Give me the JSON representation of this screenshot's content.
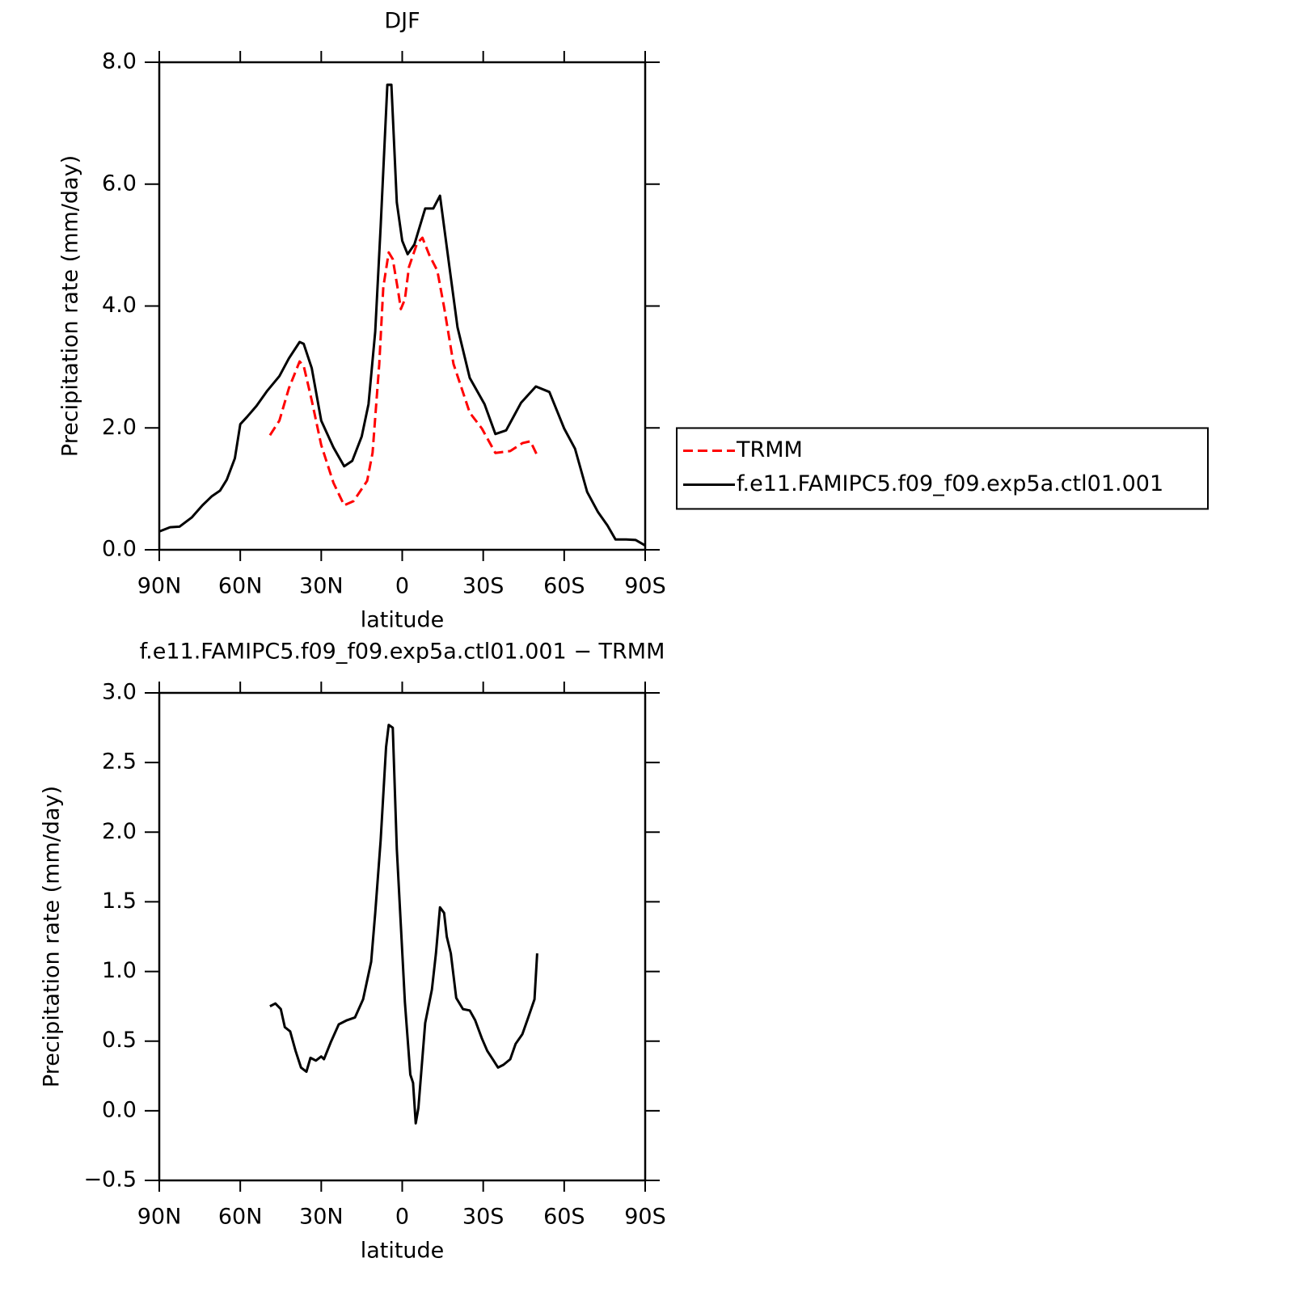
{
  "chart_data": [
    {
      "type": "line",
      "title": "DJF",
      "xlabel": "latitude",
      "ylabel": "Precipitation rate (mm/day)",
      "xlim": [
        90,
        -90
      ],
      "xticks": [
        {
          "value": 90,
          "label": "90N"
        },
        {
          "value": 60,
          "label": "60N"
        },
        {
          "value": 30,
          "label": "30N"
        },
        0,
        {
          "value": -30,
          "label": "30S"
        },
        {
          "value": -60,
          "label": "60S"
        },
        {
          "value": -90,
          "label": "90S"
        }
      ],
      "ylim": [
        0,
        8
      ],
      "yticks": [
        {
          "value": 0,
          "label": "0.0"
        },
        {
          "value": 2,
          "label": "2.0"
        },
        {
          "value": 4,
          "label": "4.0"
        },
        {
          "value": 6,
          "label": "6.0"
        },
        {
          "value": 8,
          "label": "8.0"
        }
      ],
      "legend": "right",
      "series": [
        {
          "name": "TRMM",
          "color": "#ff0000",
          "line_style": "dashed",
          "x": [
            49,
            45.5,
            42,
            38,
            36.5,
            33.5,
            30,
            25.5,
            21.5,
            18,
            13,
            11,
            8.5,
            7,
            5,
            3.5,
            1.5,
            0.5,
            -1,
            -2.5,
            -5.5,
            -7.5,
            -10,
            -13,
            -15.5,
            -19,
            -22,
            -25,
            -29.5,
            -34.5,
            -40,
            -44.5,
            -47.5,
            -50
          ],
          "values": [
            1.88,
            2.12,
            2.65,
            3.09,
            3.02,
            2.45,
            1.72,
            1.1,
            0.73,
            0.8,
            1.13,
            1.59,
            3.05,
            4.31,
            4.88,
            4.77,
            4.24,
            3.95,
            4.11,
            4.64,
            5.03,
            5.12,
            4.84,
            4.58,
            3.98,
            3.05,
            2.65,
            2.25,
            1.99,
            1.59,
            1.62,
            1.75,
            1.78,
            1.55
          ]
        },
        {
          "name": "f.e11.FAMIPC5.f09_f09.exp5a.ctl01.001",
          "color": "#000000",
          "line_style": "solid",
          "x": [
            90,
            86,
            82.5,
            78,
            74,
            70.5,
            67.5,
            65,
            62,
            60,
            57.5,
            54,
            50,
            45.5,
            42,
            38,
            36.5,
            33.5,
            30,
            25.5,
            21.5,
            18.5,
            15,
            12.5,
            10,
            8,
            5.5,
            4,
            2,
            0,
            -2,
            -4.5,
            -8.5,
            -11.5,
            -14,
            -17.5,
            -20.5,
            -25,
            -30.5,
            -34.5,
            -38.5,
            -44,
            -49.5,
            -54.5,
            -60,
            -64,
            -68.5,
            -72.5,
            -76,
            -79,
            -83,
            -86.5,
            -90
          ],
          "values": [
            0.3,
            0.37,
            0.38,
            0.53,
            0.73,
            0.88,
            0.97,
            1.15,
            1.5,
            2.06,
            2.18,
            2.36,
            2.61,
            2.85,
            3.14,
            3.41,
            3.38,
            2.98,
            2.12,
            1.68,
            1.37,
            1.46,
            1.86,
            2.39,
            3.58,
            5.3,
            7.63,
            7.63,
            5.7,
            5.07,
            4.85,
            5.01,
            5.6,
            5.6,
            5.81,
            4.64,
            3.65,
            2.82,
            2.39,
            1.9,
            1.96,
            2.41,
            2.68,
            2.59,
            1.99,
            1.66,
            0.95,
            0.62,
            0.4,
            0.17,
            0.17,
            0.16,
            0.07
          ]
        }
      ]
    },
    {
      "type": "line",
      "title": "f.e11.FAMIPC5.f09_f09.exp5a.ctl01.001 − TRMM",
      "xlabel": "latitude",
      "ylabel": "Precipitation rate (mm/day)",
      "xlim": [
        90,
        -90
      ],
      "xticks": [
        {
          "value": 90,
          "label": "90N"
        },
        {
          "value": 60,
          "label": "60N"
        },
        {
          "value": 30,
          "label": "30N"
        },
        0,
        {
          "value": -30,
          "label": "30S"
        },
        {
          "value": -60,
          "label": "60S"
        },
        {
          "value": -90,
          "label": "90S"
        }
      ],
      "ylim": [
        -0.5,
        3
      ],
      "yticks": [
        {
          "value": -0.5,
          "label": "−0.5"
        },
        {
          "value": 0,
          "label": "0.0"
        },
        0.5,
        {
          "value": 1,
          "label": "1.0"
        },
        1.5,
        {
          "value": 2,
          "label": "2.0"
        },
        2.5,
        {
          "value": 3,
          "label": "3.0"
        }
      ],
      "series": [
        {
          "color": "#000000",
          "line_style": "solid",
          "x": [
            49,
            47,
            45,
            43.5,
            41.5,
            39.5,
            37.5,
            35.5,
            34,
            32,
            30,
            29,
            26.5,
            23.5,
            20.5,
            17.5,
            14.5,
            11.5,
            10,
            8,
            6,
            5,
            3.5,
            2,
            -1,
            -3,
            -4,
            -5,
            -6,
            -8.5,
            -11,
            -12.5,
            -14,
            -15.5,
            -16.5,
            -18,
            -20,
            -22.5,
            -25,
            -27,
            -29.5,
            -31.5,
            -33.5,
            -35.5,
            -37.5,
            -40,
            -42,
            -44.5,
            -46.5,
            -49,
            -50
          ],
          "values": [
            0.75,
            0.77,
            0.73,
            0.6,
            0.57,
            0.43,
            0.31,
            0.28,
            0.38,
            0.36,
            0.39,
            0.37,
            0.49,
            0.62,
            0.65,
            0.67,
            0.8,
            1.07,
            1.42,
            1.94,
            2.61,
            2.77,
            2.75,
            1.88,
            0.78,
            0.26,
            0.2,
            -0.09,
            0.02,
            0.63,
            0.87,
            1.13,
            1.46,
            1.42,
            1.25,
            1.13,
            0.81,
            0.73,
            0.72,
            0.65,
            0.52,
            0.43,
            0.37,
            0.31,
            0.33,
            0.37,
            0.48,
            0.55,
            0.66,
            0.8,
            1.13
          ]
        }
      ]
    }
  ]
}
